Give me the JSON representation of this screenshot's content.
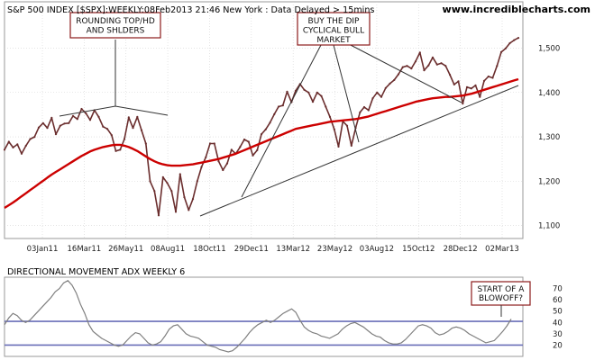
{
  "chart_data": [
    {
      "type": "line",
      "title": "S&P 500 INDEX [$SPX]:WEEKLY:08Feb2013 21:46 New York : Data Delayed > 15mins",
      "watermark": "www.incrediblecharts.com",
      "x_tick_labels": [
        "03Jan11",
        "16Mar11",
        "26May11",
        "08Aug11",
        "18Oct11",
        "29Dec11",
        "13Mar12",
        "23May12",
        "03Aug12",
        "15Oct12",
        "28Dec12",
        "02Mar13"
      ],
      "y_tick_labels": [
        "1,100",
        "1,200",
        "1,300",
        "1,400",
        "1,500"
      ],
      "ylim": [
        1075,
        1580
      ],
      "grid": true,
      "series": [
        {
          "name": "",
          "color": "#6b2e2e",
          "values": [
            1271,
            1289,
            1276,
            1283,
            1262,
            1280,
            1295,
            1300,
            1321,
            1331,
            1320,
            1343,
            1306,
            1325,
            1330,
            1331,
            1347,
            1340,
            1363,
            1353,
            1338,
            1360,
            1345,
            1323,
            1318,
            1304,
            1268,
            1271,
            1295,
            1344,
            1320,
            1345,
            1315,
            1285,
            1200,
            1178,
            1123,
            1209,
            1196,
            1178,
            1131,
            1216,
            1164,
            1135,
            1160,
            1200,
            1232,
            1254,
            1285,
            1285,
            1245,
            1225,
            1240,
            1271,
            1262,
            1277,
            1294,
            1289,
            1258,
            1270,
            1306,
            1317,
            1332,
            1351,
            1368,
            1371,
            1402,
            1378,
            1404,
            1419,
            1406,
            1400,
            1379,
            1400,
            1392,
            1368,
            1345,
            1317,
            1278,
            1335,
            1325,
            1280,
            1320,
            1355,
            1367,
            1360,
            1387,
            1400,
            1390,
            1410,
            1420,
            1428,
            1441,
            1457,
            1460,
            1454,
            1470,
            1490,
            1450,
            1461,
            1479,
            1463,
            1466,
            1460,
            1440,
            1418,
            1425,
            1375,
            1412,
            1409,
            1416,
            1390,
            1426,
            1436,
            1433,
            1460,
            1491,
            1499,
            1511,
            1518,
            1523
          ]
        },
        {
          "name": "",
          "color": "#cc0000",
          "values": [
            1140,
            1146,
            1152,
            1159,
            1166,
            1173,
            1180,
            1187,
            1194,
            1201,
            1208,
            1215,
            1221,
            1227,
            1233,
            1239,
            1245,
            1251,
            1257,
            1262,
            1267,
            1271,
            1274,
            1277,
            1279,
            1281,
            1282,
            1282,
            1280,
            1277,
            1273,
            1268,
            1262,
            1256,
            1250,
            1245,
            1241,
            1238,
            1236,
            1235,
            1235,
            1235,
            1236,
            1237,
            1238,
            1240,
            1242,
            1244,
            1246,
            1248,
            1250,
            1253,
            1256,
            1259,
            1262,
            1266,
            1270,
            1274,
            1278,
            1282,
            1286,
            1290,
            1294,
            1298,
            1302,
            1306,
            1310,
            1314,
            1318,
            1320,
            1322,
            1324,
            1326,
            1328,
            1330,
            1332,
            1334,
            1335,
            1336,
            1337,
            1338,
            1339,
            1340,
            1342,
            1344,
            1346,
            1349,
            1352,
            1355,
            1358,
            1361,
            1364,
            1367,
            1370,
            1373,
            1376,
            1379,
            1381,
            1383,
            1385,
            1387,
            1388,
            1389,
            1390,
            1390,
            1391,
            1392,
            1393,
            1395,
            1397,
            1400,
            1403,
            1406,
            1409,
            1412,
            1415,
            1418,
            1421,
            1424,
            1427,
            1430
          ]
        }
      ]
    },
    {
      "type": "line",
      "title": "DIRECTIONAL MOVEMENT ADX WEEKLY 6",
      "y_tick_labels": [
        "20",
        "30",
        "40",
        "50",
        "60",
        "70"
      ],
      "ylim": [
        10,
        80
      ],
      "reference_lines": [
        41,
        20
      ],
      "reference_color": "#6a6fb8",
      "series": [
        {
          "name": "",
          "color": "#7f7f7f",
          "values": [
            38,
            44,
            48,
            46,
            42,
            40,
            42,
            46,
            50,
            54,
            58,
            62,
            67,
            70,
            75,
            77,
            73,
            66,
            56,
            48,
            38,
            32,
            29,
            26,
            24,
            22,
            20,
            19,
            20,
            24,
            28,
            31,
            30,
            26,
            22,
            20,
            21,
            23,
            28,
            34,
            37,
            38,
            34,
            30,
            28,
            27,
            26,
            23,
            20,
            19,
            18,
            16,
            15,
            14,
            15,
            18,
            22,
            26,
            31,
            35,
            38,
            40,
            42,
            40,
            42,
            45,
            48,
            50,
            52,
            49,
            42,
            36,
            33,
            31,
            30,
            28,
            27,
            26,
            28,
            30,
            34,
            37,
            39,
            40,
            38,
            36,
            33,
            30,
            28,
            27,
            24,
            22,
            21,
            21,
            22,
            25,
            29,
            33,
            37,
            38,
            37,
            35,
            31,
            29,
            30,
            32,
            35,
            36,
            35,
            33,
            30,
            28,
            26,
            24,
            22,
            23,
            24,
            28,
            32,
            37,
            43
          ]
        }
      ]
    }
  ],
  "annotations": {
    "top": "ROUNDING TOP/HD\nAND SHLDERS",
    "buy": "BUY THE DIP\nCYCLICAL BULL\nMARKET",
    "blowoff": "START OF A\nBLOWOFF?"
  },
  "colors": {
    "line_color": "#6b2e2e",
    "line_color_ema": "#cc0000",
    "line_color_adx": "#7f7f7f",
    "box_border": "#8b1a1a",
    "grid": "#d3d3d3"
  }
}
